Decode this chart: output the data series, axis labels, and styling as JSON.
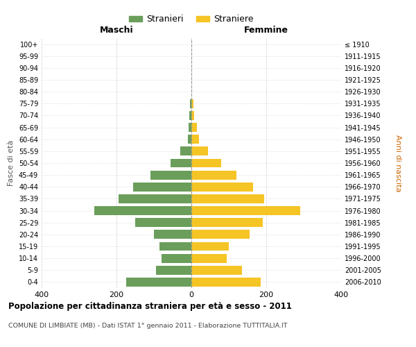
{
  "age_groups": [
    "0-4",
    "5-9",
    "10-14",
    "15-19",
    "20-24",
    "25-29",
    "30-34",
    "35-39",
    "40-44",
    "45-49",
    "50-54",
    "55-59",
    "60-64",
    "65-69",
    "70-74",
    "75-79",
    "80-84",
    "85-89",
    "90-94",
    "95-99",
    "100+"
  ],
  "birth_years": [
    "2006-2010",
    "2001-2005",
    "1996-2000",
    "1991-1995",
    "1986-1990",
    "1981-1985",
    "1976-1980",
    "1971-1975",
    "1966-1970",
    "1961-1965",
    "1956-1960",
    "1951-1955",
    "1946-1950",
    "1941-1945",
    "1936-1940",
    "1931-1935",
    "1926-1930",
    "1921-1925",
    "1916-1920",
    "1911-1915",
    "≤ 1910"
  ],
  "males": [
    175,
    95,
    80,
    85,
    100,
    150,
    260,
    195,
    155,
    110,
    55,
    30,
    10,
    8,
    5,
    3,
    0,
    0,
    0,
    0,
    0
  ],
  "females": [
    185,
    135,
    95,
    100,
    155,
    190,
    290,
    195,
    165,
    120,
    80,
    45,
    20,
    15,
    8,
    5,
    0,
    0,
    0,
    0,
    0
  ],
  "male_color": "#6a9e5a",
  "female_color": "#f5c425",
  "title": "Popolazione per cittadinanza straniera per età e sesso - 2011",
  "subtitle": "COMUNE DI LIMBIATE (MB) - Dati ISTAT 1° gennaio 2011 - Elaborazione TUTTITALIA.IT",
  "ylabel_left": "Fasce di età",
  "ylabel_right": "Anni di nascita",
  "xlabel_left": "Maschi",
  "xlabel_right": "Femmine",
  "legend_male": "Stranieri",
  "legend_female": "Straniere",
  "xlim": 400,
  "background_color": "#ffffff",
  "grid_color": "#cccccc",
  "right_label_color": "#cc6600"
}
